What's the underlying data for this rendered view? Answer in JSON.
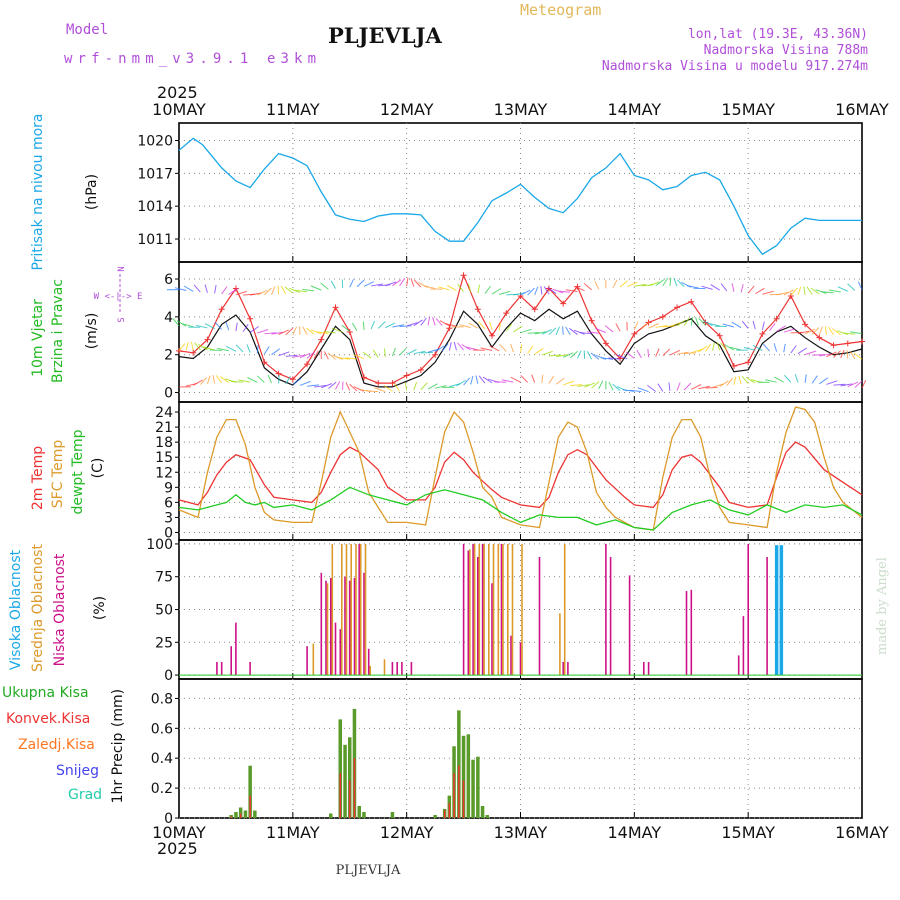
{
  "header": {
    "model_label": "Model",
    "model_name": "wrf-nmm_v3.9.1 e3km",
    "station": "PLJEVLJA",
    "meteogram": "Meteogram",
    "lonlat": "lon,lat (19.3E, 43.36N)",
    "altitude": "Nadmorska Visina 788m",
    "model_altitude": "Nadmorska Visina u modelu 917.274m",
    "footer_station": "PLJEVLJA",
    "credit": "made by Angel"
  },
  "colors": {
    "pressure": "#1aa8e8",
    "t2m": "#ee3333",
    "sfc": "#dd9a2a",
    "dew": "#22cc22",
    "high_cloud": "#1aa8e8",
    "mid_cloud": "#dd9a2a",
    "low_cloud": "#cc1188",
    "precip_total": "#22aa22",
    "precip_conv": "#ee3333",
    "precip_frz": "#ff7722",
    "snow": "#4444ee",
    "graupel": "#22ccaa",
    "header_purple": "#b04fd8",
    "header_gold": "#e2b85a"
  },
  "chart_data": {
    "type": "meteogram",
    "year": "2025",
    "x_ticks": [
      "10MAY",
      "11MAY",
      "12MAY",
      "13MAY",
      "14MAY",
      "15MAY",
      "16MAY"
    ],
    "x_range_hours": [
      0,
      144
    ],
    "panels": [
      {
        "id": "pressure",
        "type": "line",
        "ylabel_title": "Pritisak na nivou mora",
        "ylabel_unit": "(hPa)",
        "ylim": [
          1008.9,
          1021.6
        ],
        "yticks": [
          1011,
          1014,
          1017,
          1020
        ],
        "series": [
          {
            "name": "MSLP",
            "x": [
              0,
              3,
              5,
              9,
              12,
              15,
              18,
              21,
              24,
              27,
              30,
              33,
              36,
              39,
              42,
              45,
              48,
              51,
              54,
              57,
              60,
              63,
              66,
              69,
              72,
              75,
              78,
              81,
              84,
              87,
              90,
              93,
              96,
              99,
              102,
              105,
              108,
              111,
              114,
              117,
              120,
              123,
              126,
              129,
              132,
              135,
              138,
              141,
              144
            ],
            "values": [
              1019.1,
              1020.2,
              1019.6,
              1017.5,
              1016.3,
              1015.7,
              1017.4,
              1018.8,
              1018.4,
              1017.7,
              1015.3,
              1013.2,
              1012.8,
              1012.6,
              1013.1,
              1013.3,
              1013.3,
              1013.2,
              1011.7,
              1010.8,
              1010.8,
              1012.5,
              1014.5,
              1015.2,
              1016.0,
              1014.8,
              1013.8,
              1013.4,
              1014.7,
              1016.6,
              1017.5,
              1018.8,
              1016.8,
              1016.4,
              1015.5,
              1015.8,
              1016.8,
              1017.1,
              1016.4,
              1014.0,
              1011.3,
              1009.6,
              1010.4,
              1012.0,
              1012.9,
              1012.7,
              1012.7,
              1012.7,
              1012.7
            ]
          }
        ]
      },
      {
        "id": "wind",
        "type": "line",
        "ylabel_title_1": "10m Vjetar",
        "ylabel_title_2": "Brzina i Pravac",
        "ylabel_unit": "(m/s)",
        "compass": "W <-|-> E",
        "compass_n": "N",
        "compass_s": "S",
        "ylim": [
          -0.5,
          6.9
        ],
        "yticks": [
          0,
          2,
          4,
          6
        ],
        "series": [
          {
            "name": "speed",
            "x": [
              0,
              3,
              6,
              9,
              12,
              15,
              18,
              21,
              24,
              27,
              30,
              33,
              36,
              39,
              42,
              45,
              48,
              51,
              54,
              57,
              60,
              63,
              66,
              69,
              72,
              75,
              78,
              81,
              84,
              87,
              90,
              93,
              96,
              99,
              102,
              105,
              108,
              111,
              114,
              117,
              120,
              123,
              126,
              129,
              132,
              135,
              138,
              141,
              144
            ],
            "values": [
              1.9,
              1.8,
              2.4,
              3.6,
              4.1,
              3.2,
              1.3,
              0.7,
              0.4,
              1.1,
              2.3,
              3.5,
              2.8,
              0.5,
              0.3,
              0.3,
              0.6,
              0.9,
              1.6,
              2.8,
              4.3,
              3.6,
              2.4,
              3.4,
              4.2,
              3.8,
              4.4,
              3.9,
              4.3,
              3.1,
              2.2,
              1.5,
              2.6,
              3.1,
              3.3,
              3.6,
              3.9,
              3.0,
              2.5,
              1.1,
              1.2,
              2.6,
              3.2,
              3.5,
              2.9,
              2.4,
              2.0,
              2.1,
              2.3
            ]
          },
          {
            "name": "gust",
            "x": [
              0,
              3,
              6,
              9,
              12,
              15,
              18,
              21,
              24,
              27,
              30,
              33,
              36,
              39,
              42,
              45,
              48,
              51,
              54,
              57,
              60,
              63,
              66,
              69,
              72,
              75,
              78,
              81,
              84,
              87,
              90,
              93,
              96,
              99,
              102,
              105,
              108,
              111,
              114,
              117,
              120,
              123,
              126,
              129,
              132,
              135,
              138,
              141,
              144
            ],
            "values": [
              2.2,
              2.1,
              2.8,
              4.4,
              5.5,
              3.9,
              1.6,
              1.0,
              0.7,
              1.5,
              2.8,
              4.5,
              3.2,
              0.8,
              0.5,
              0.5,
              0.9,
              1.2,
              2.0,
              3.4,
              6.2,
              4.4,
              3.0,
              4.2,
              5.1,
              4.4,
              5.5,
              4.7,
              5.6,
              3.8,
              2.6,
              1.8,
              3.1,
              3.7,
              4.0,
              4.5,
              4.8,
              3.7,
              3.0,
              1.4,
              1.6,
              3.1,
              3.9,
              5.1,
              3.6,
              2.9,
              2.5,
              2.6,
              2.7
            ]
          }
        ]
      },
      {
        "id": "temperature",
        "type": "line",
        "ylabel_1": "2m Temp",
        "ylabel_2": "SFC Temp",
        "ylabel_3": "dewpt Temp",
        "ylabel_unit": "(C)",
        "ylim": [
          -1.5,
          26
        ],
        "yticks": [
          0,
          3,
          6,
          9,
          12,
          15,
          18,
          21,
          24
        ],
        "series": [
          {
            "name": "2m Temp",
            "x": [
              0,
              4,
              6,
              8,
              10,
              12,
              15,
              18,
              20,
              24,
              28,
              30,
              32,
              34,
              36,
              38,
              42,
              44,
              48,
              52,
              54,
              56,
              58,
              60,
              62,
              66,
              68,
              72,
              76,
              78,
              80,
              82,
              84,
              86,
              90,
              94,
              96,
              100,
              102,
              104,
              106,
              108,
              110,
              114,
              116,
              120,
              124,
              126,
              128,
              130,
              132,
              136,
              140,
              144
            ],
            "values": [
              6.5,
              5.5,
              8,
              11.5,
              14,
              15.5,
              14.5,
              9.5,
              7,
              6.5,
              6,
              8,
              12,
              15.5,
              17,
              16,
              12.5,
              9,
              6.5,
              6.5,
              9,
              14,
              16,
              14.5,
              12,
              8.5,
              7,
              5.5,
              5,
              7,
              12,
              15.5,
              16.5,
              15.5,
              10.5,
              7,
              5.5,
              5,
              7.5,
              12.5,
              15,
              15.5,
              14,
              9,
              6,
              5,
              5.5,
              11,
              16,
              18,
              17,
              12.5,
              10,
              7.5
            ]
          },
          {
            "name": "SFC Temp",
            "x": [
              0,
              4,
              6,
              8,
              10,
              12,
              14,
              16,
              18,
              20,
              24,
              28,
              30,
              32,
              34,
              36,
              38,
              40,
              42,
              44,
              48,
              52,
              54,
              56,
              58,
              60,
              62,
              64,
              66,
              68,
              72,
              76,
              78,
              80,
              82,
              84,
              86,
              88,
              90,
              92,
              96,
              100,
              102,
              104,
              106,
              108,
              110,
              112,
              114,
              116,
              120,
              124,
              126,
              128,
              130,
              132,
              134,
              136,
              138,
              140,
              144
            ],
            "values": [
              4.5,
              3,
              12,
              19,
              22.5,
              22.5,
              17.5,
              9,
              4,
              2.5,
              2,
              2,
              10,
              19,
              24,
              20,
              16,
              8,
              5,
              2,
              2,
              1.5,
              11,
              20,
              24,
              22,
              16,
              9,
              7,
              3,
              1.5,
              1,
              10,
              19,
              22,
              21,
              16,
              8,
              5,
              3,
              1,
              0.5,
              11,
              19,
              22.5,
              22.5,
              19,
              11,
              5,
              2,
              1.5,
              1,
              12,
              20,
              25,
              24.5,
              22,
              15,
              9,
              6,
              3
            ]
          },
          {
            "name": "dewpt Temp",
            "x": [
              0,
              4,
              8,
              10,
              12,
              14,
              16,
              18,
              20,
              24,
              28,
              32,
              36,
              40,
              44,
              48,
              52,
              56,
              60,
              64,
              68,
              72,
              76,
              80,
              84,
              88,
              92,
              96,
              100,
              104,
              108,
              112,
              116,
              120,
              124,
              128,
              132,
              136,
              140,
              144
            ],
            "values": [
              5,
              4.5,
              5.5,
              6,
              7.5,
              6,
              5.5,
              6,
              5,
              5.5,
              4.5,
              6.5,
              9,
              7.5,
              6.5,
              5.5,
              7.5,
              8.5,
              7.5,
              6.5,
              4,
              2,
              3.5,
              3,
              3,
              1.5,
              2.5,
              1,
              0.5,
              4,
              5.5,
              6.5,
              4.5,
              3.5,
              5.5,
              4,
              5.5,
              5,
              5.5,
              3.5
            ]
          }
        ]
      },
      {
        "id": "cloud",
        "type": "bar",
        "ylabel_1": "Visoka Oblacnost",
        "ylabel_2": "Srednja Oblacnost",
        "ylabel_3": "Niska Oblacnost",
        "ylabel_unit": "(%)",
        "ylim": [
          -3,
          103
        ],
        "yticks": [
          0,
          25,
          50,
          75,
          100
        ],
        "series": [
          {
            "name": "Niska Oblacnost",
            "x": [
              8,
              9,
              11,
              12,
              15,
              27,
              30,
              31,
              32,
              33,
              34,
              35,
              36,
              37,
              38,
              39,
              40,
              45,
              46,
              47,
              49,
              60,
              61,
              62,
              63,
              64,
              66,
              68,
              70,
              72,
              76,
              81,
              82,
              90,
              91,
              95,
              98,
              99,
              107,
              108,
              118,
              119,
              120,
              124,
              126
            ],
            "values": [
              10,
              10,
              22,
              40,
              10,
              22,
              78,
              72,
              74,
              40,
              35,
              75,
              72,
              74,
              100,
              78,
              20,
              10,
              10,
              10,
              10,
              100,
              95,
              100,
              90,
              100,
              70,
              100,
              30,
              25,
              90,
              10,
              10,
              100,
              90,
              76,
              10,
              10,
              64,
              65,
              15,
              45,
              100,
              90,
              80
            ]
          },
          {
            "name": "Srednja Oblacnost",
            "x": [
              28,
              31,
              32,
              34,
              35,
              36,
              37,
              38,
              39,
              40,
              43,
              61,
              62,
              63,
              64,
              65,
              66,
              67,
              68,
              69,
              70,
              72,
              80,
              81
            ],
            "values": [
              24,
              70,
              100,
              100,
              100,
              100,
              100,
              100,
              100,
              7,
              12,
              96,
              100,
              100,
              100,
              100,
              100,
              100,
              100,
              100,
              100,
              100,
              47,
              100
            ]
          },
          {
            "name": "Visoka Oblacnost",
            "x": [
              126,
              127
            ],
            "values": [
              99,
              99
            ]
          }
        ]
      },
      {
        "id": "precip",
        "type": "bar",
        "legend": [
          "Ukupna Kisa",
          "Konvek.Kisa",
          "Zaledj.Kisa",
          "Snijeg",
          "Grad"
        ],
        "ylabel_title": "1hr Precip",
        "ylabel_unit": "(mm)",
        "ylim": [
          0,
          0.93
        ],
        "yticks": [
          0,
          0.2,
          0.4,
          0.6,
          0.8
        ],
        "series": [
          {
            "name": "Ukupna Kisa",
            "x": [
              11,
              12,
              13,
              14,
              15,
              16,
              32,
              34,
              35,
              36,
              37,
              38,
              39,
              45,
              54,
              56,
              57,
              58,
              59,
              60,
              61,
              62,
              63,
              64,
              65
            ],
            "values": [
              0.02,
              0.04,
              0.07,
              0.05,
              0.35,
              0.05,
              0.03,
              0.66,
              0.49,
              0.54,
              0.73,
              0.08,
              0.04,
              0.04,
              0.02,
              0.06,
              0.15,
              0.48,
              0.72,
              0.55,
              0.56,
              0.39,
              0.41,
              0.08,
              0.02
            ]
          },
          {
            "name": "Konvek.Kisa",
            "x": [
              11,
              13,
              15,
              34,
              36,
              37,
              56,
              57,
              58,
              59,
              60
            ],
            "values": [
              0.01,
              0.03,
              0.15,
              0.3,
              0.25,
              0.4,
              0.05,
              0.1,
              0.3,
              0.35,
              0.25
            ]
          }
        ]
      }
    ]
  }
}
